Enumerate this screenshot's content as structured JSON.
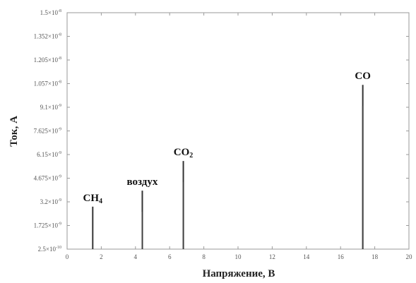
{
  "chart_data": {
    "type": "line",
    "title": "",
    "xlabel": "Напряжение, В",
    "ylabel": "Ток, А",
    "xlim": [
      0,
      20
    ],
    "ylim": [
      2.5e-10,
      1.5e-08
    ],
    "grid": false,
    "x_ticks": [
      "0",
      "2",
      "4",
      "6",
      "8",
      "10",
      "12",
      "14",
      "16",
      "18",
      "20"
    ],
    "y_ticks": [
      {
        "value": 1.5e-08,
        "mantissa": "1.5×10",
        "exp": "-8"
      },
      {
        "value": 1.3525e-08,
        "mantissa": "1.352×10",
        "exp": "-8"
      },
      {
        "value": 1.205e-08,
        "mantissa": "1.205×10",
        "exp": "-8"
      },
      {
        "value": 1.0575e-08,
        "mantissa": "1.057×10",
        "exp": "-8"
      },
      {
        "value": 9.1e-09,
        "mantissa": "9.1×10",
        "exp": "-9"
      },
      {
        "value": 7.625e-09,
        "mantissa": "7.625×10",
        "exp": "-9"
      },
      {
        "value": 6.15e-09,
        "mantissa": "6.15×10",
        "exp": "-9"
      },
      {
        "value": 4.675e-09,
        "mantissa": "4.675×10",
        "exp": "-9"
      },
      {
        "value": 3.2e-09,
        "mantissa": "3.2×10",
        "exp": "-9"
      },
      {
        "value": 1.725e-09,
        "mantissa": "1.725×10",
        "exp": "-9"
      },
      {
        "value": 2.5e-10,
        "mantissa": "2.5×10",
        "exp": "-10"
      }
    ],
    "peaks": [
      {
        "label": "CH",
        "label_sub": "4",
        "x": 1.5,
        "y": 2.9e-09
      },
      {
        "label": "воздух",
        "label_sub": "",
        "x": 4.4,
        "y": 3.9e-09
      },
      {
        "label": "CO",
        "label_sub": "2",
        "x": 6.8,
        "y": 5.75e-09
      },
      {
        "label": "CO",
        "label_sub": "",
        "x": 17.3,
        "y": 1.05e-08
      }
    ]
  }
}
